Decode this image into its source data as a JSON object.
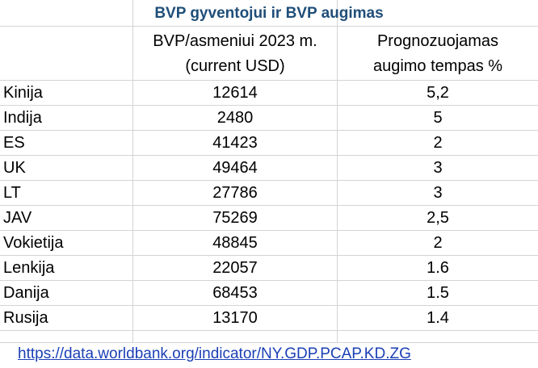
{
  "table": {
    "title": "BVP gyventojui ir BVP augimas",
    "header": {
      "col1_line1": "BVP/asmeniui 2023 m.",
      "col1_line2": "(current USD)",
      "col2_line1": "Prognozuojamas",
      "col2_line2": "augimo tempas %"
    },
    "rows": [
      {
        "country": "Kinija",
        "gdp": "12614",
        "growth": "5,2"
      },
      {
        "country": "Indija",
        "gdp": "2480",
        "growth": "5"
      },
      {
        "country": "ES",
        "gdp": "41423",
        "growth": "2"
      },
      {
        "country": "UK",
        "gdp": "49464",
        "growth": "3"
      },
      {
        "country": "LT",
        "gdp": "27786",
        "growth": "3"
      },
      {
        "country": "JAV",
        "gdp": "75269",
        "growth": "2,5"
      },
      {
        "country": "Vokietija",
        "gdp": "48845",
        "growth": "2"
      },
      {
        "country": "Lenkija",
        "gdp": "22057",
        "growth": "1.6"
      },
      {
        "country": "Danija",
        "gdp": "68453",
        "growth": "1.5"
      },
      {
        "country": "Rusija",
        "gdp": "13170",
        "growth": "1.4"
      }
    ],
    "source_link": "https://data.worldbank.org/indicator/NY.GDP.PCAP.KD.ZG"
  }
}
